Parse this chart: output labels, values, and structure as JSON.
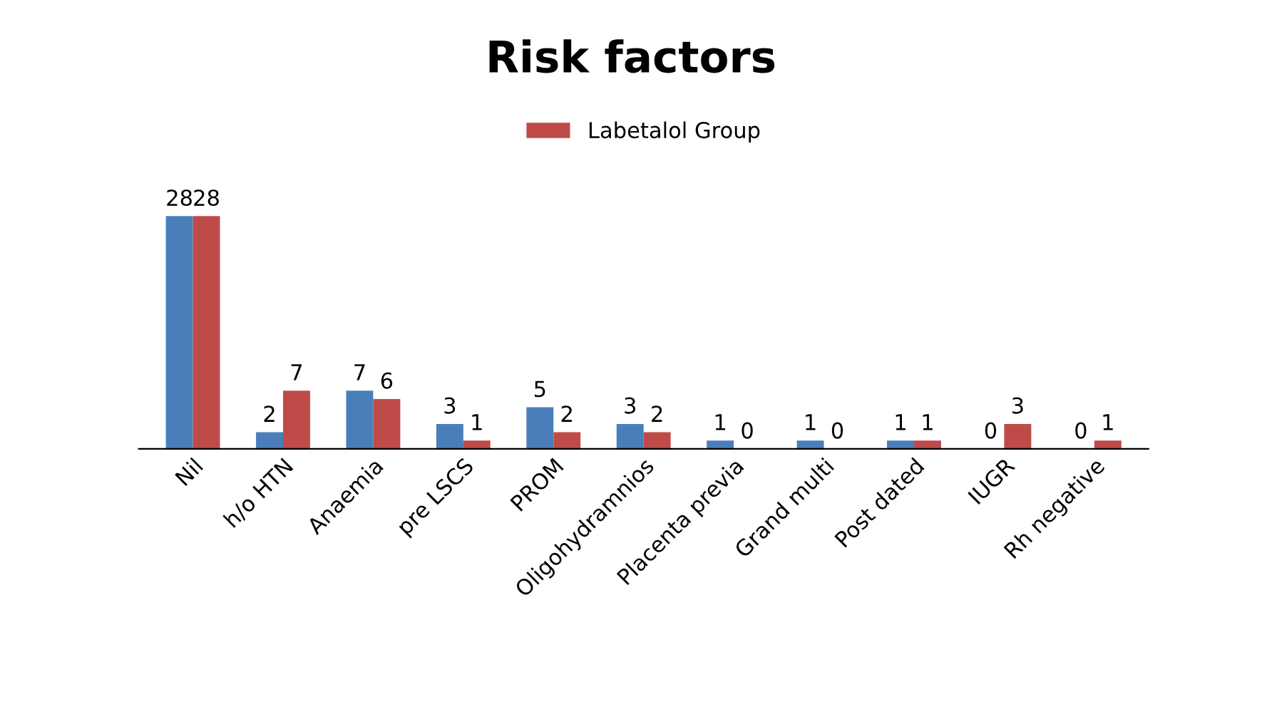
{
  "chart_data": {
    "type": "bar",
    "title": "Risk factors",
    "categories": [
      "Nil",
      "h/o HTN",
      "Anaemia",
      "pre LSCS",
      "PROM",
      "Oligohydramnios",
      "Placenta previa",
      "Grand multi",
      "Post dated",
      "IUGR",
      "Rh negative"
    ],
    "series": [
      {
        "color": "#4a7ebb",
        "values": [
          28,
          2,
          7,
          3,
          5,
          3,
          1,
          1,
          1,
          0,
          0
        ]
      },
      {
        "name": "Labetalol Group",
        "color": "#be4b48",
        "values": [
          28,
          7,
          6,
          1,
          2,
          2,
          0,
          0,
          1,
          3,
          1
        ]
      }
    ],
    "data_labels": true,
    "legend": "top"
  }
}
